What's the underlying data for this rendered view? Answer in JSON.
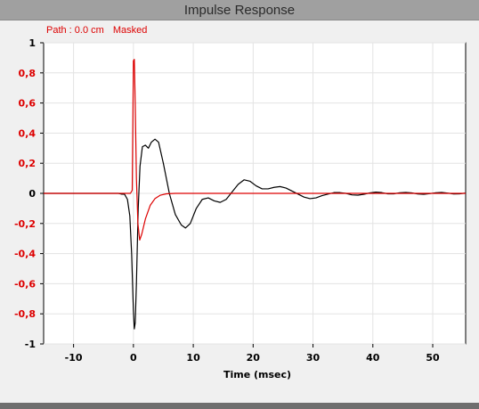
{
  "window": {
    "title": "Impulse Response"
  },
  "header": {
    "path_label": "Path : 0.0 cm",
    "masked_label": "Masked"
  },
  "colors": {
    "masked_series": "#dd0000",
    "main_series": "#000000",
    "axis_text_y": "#dd0000",
    "axis_text_x": "#000000",
    "grid": "#e3e3e3",
    "plot_background": "#ffffff"
  },
  "chart_data": {
    "type": "line",
    "xlabel": "Time (msec)",
    "ylabel": "",
    "xlim": [
      -15,
      55.5
    ],
    "ylim": [
      -1,
      1
    ],
    "x_ticks": [
      "-10",
      "0",
      "10",
      "20",
      "30",
      "40",
      "50"
    ],
    "x_tick_values": [
      -10,
      0,
      10,
      20,
      30,
      40,
      50
    ],
    "y_ticks": [
      "1",
      "0,8",
      "0,6",
      "0,4",
      "0,2",
      "0",
      "-0,2",
      "-0,4",
      "-0,6",
      "-0,8",
      "-1"
    ],
    "y_tick_values": [
      1,
      0.8,
      0.6,
      0.4,
      0.2,
      0,
      -0.2,
      -0.4,
      -0.6,
      -0.8,
      -1
    ],
    "grid": true,
    "series": [
      {
        "color": "#000000",
        "points": [
          [
            -15,
            0
          ],
          [
            -2.5,
            0
          ],
          [
            -2,
            -0.005
          ],
          [
            -1.5,
            -0.005
          ],
          [
            -1,
            -0.04
          ],
          [
            -0.6,
            -0.15
          ],
          [
            -0.3,
            -0.4
          ],
          [
            0,
            -0.78
          ],
          [
            0.15,
            -0.9
          ],
          [
            0.3,
            -0.86
          ],
          [
            0.5,
            -0.6
          ],
          [
            0.8,
            -0.1
          ],
          [
            1.1,
            0.18
          ],
          [
            1.5,
            0.31
          ],
          [
            2.0,
            0.32
          ],
          [
            2.5,
            0.3
          ],
          [
            3.0,
            0.34
          ],
          [
            3.6,
            0.36
          ],
          [
            4.2,
            0.34
          ],
          [
            5,
            0.2
          ],
          [
            6,
            0.0
          ],
          [
            7,
            -0.14
          ],
          [
            8,
            -0.21
          ],
          [
            8.7,
            -0.23
          ],
          [
            9.5,
            -0.2
          ],
          [
            10.5,
            -0.1
          ],
          [
            11.5,
            -0.04
          ],
          [
            12.5,
            -0.03
          ],
          [
            13.5,
            -0.05
          ],
          [
            14.5,
            -0.06
          ],
          [
            15.5,
            -0.04
          ],
          [
            16.5,
            0.01
          ],
          [
            17.5,
            0.06
          ],
          [
            18.5,
            0.09
          ],
          [
            19.5,
            0.08
          ],
          [
            20.5,
            0.05
          ],
          [
            21.5,
            0.03
          ],
          [
            22.5,
            0.03
          ],
          [
            23.5,
            0.04
          ],
          [
            24.5,
            0.045
          ],
          [
            25.5,
            0.035
          ],
          [
            26.5,
            0.015
          ],
          [
            27.5,
            -0.005
          ],
          [
            28.5,
            -0.025
          ],
          [
            29.5,
            -0.035
          ],
          [
            30.5,
            -0.03
          ],
          [
            31.5,
            -0.015
          ],
          [
            32.5,
            -0.005
          ],
          [
            33.5,
            0.005
          ],
          [
            34.5,
            0.005
          ],
          [
            35.5,
            0
          ],
          [
            36.5,
            -0.01
          ],
          [
            37.5,
            -0.012
          ],
          [
            38.5,
            -0.006
          ],
          [
            39.5,
            0.003
          ],
          [
            40.5,
            0.008
          ],
          [
            41.5,
            0.005
          ],
          [
            42.5,
            -0.003
          ],
          [
            43.5,
            -0.003
          ],
          [
            44.5,
            0.004
          ],
          [
            45.5,
            0.006
          ],
          [
            46.5,
            0.003
          ],
          [
            47.5,
            -0.004
          ],
          [
            48.5,
            -0.006
          ],
          [
            49.5,
            -0.002
          ],
          [
            50.5,
            0.004
          ],
          [
            51.5,
            0.006
          ],
          [
            52.5,
            0.002
          ],
          [
            53.5,
            -0.004
          ],
          [
            54.5,
            -0.003
          ],
          [
            55.5,
            0.002
          ]
        ]
      },
      {
        "color": "#dd0000",
        "points": [
          [
            -15,
            0
          ],
          [
            -0.5,
            0
          ],
          [
            -0.2,
            0.02
          ],
          [
            0,
            0.88
          ],
          [
            0.15,
            0.89
          ],
          [
            0.3,
            0.6
          ],
          [
            0.5,
            0.1
          ],
          [
            0.75,
            -0.2
          ],
          [
            1.05,
            -0.31
          ],
          [
            1.4,
            -0.27
          ],
          [
            2,
            -0.17
          ],
          [
            2.8,
            -0.08
          ],
          [
            3.6,
            -0.035
          ],
          [
            4.5,
            -0.012
          ],
          [
            5.5,
            -0.003
          ],
          [
            7,
            0
          ],
          [
            55.5,
            0
          ]
        ]
      }
    ]
  }
}
